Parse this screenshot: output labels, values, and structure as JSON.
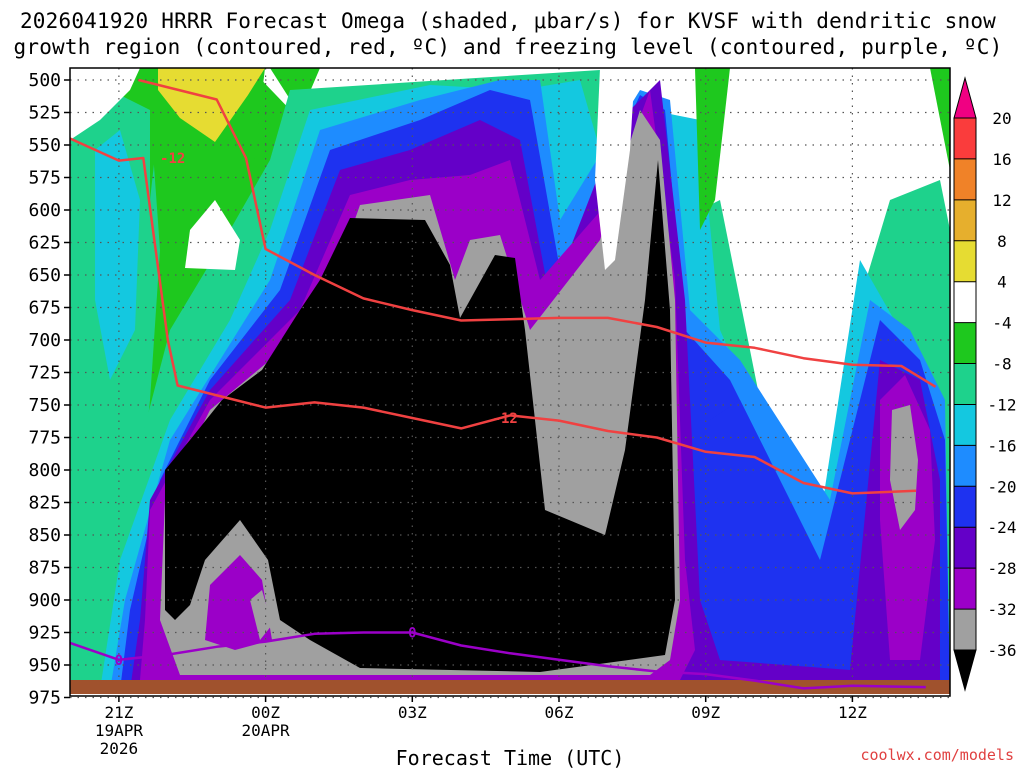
{
  "title_lines": [
    "2026041920 HRRR Forecast Omega (shaded, μbar/s) for KVSF with dendritic snow",
    "growth region (contoured, red, ºC) and freezing level (contoured, purple, ºC)"
  ],
  "credit": "coolwx.com/models",
  "chart_data": {
    "type": "heatmap",
    "title": "2026041920 HRRR Forecast Omega (shaded, μbar/s) for KVSF with dendritic snow growth region (contoured, red, ºC) and freezing level (contoured, purple, ºC)",
    "xlabel": "Forecast Time (UTC)",
    "ylabel": "",
    "x_ticks": [
      {
        "label": "21Z",
        "sub": [
          "19APR",
          "2026"
        ],
        "hours": 1
      },
      {
        "label": "00Z",
        "sub": [
          "20APR"
        ],
        "hours": 4
      },
      {
        "label": "03Z",
        "sub": [],
        "hours": 7
      },
      {
        "label": "06Z",
        "sub": [],
        "hours": 10
      },
      {
        "label": "09Z",
        "sub": [],
        "hours": 13
      },
      {
        "label": "12Z",
        "sub": [],
        "hours": 16
      }
    ],
    "y_ticks": [
      500,
      525,
      550,
      575,
      600,
      625,
      650,
      675,
      700,
      725,
      750,
      775,
      800,
      825,
      850,
      875,
      900,
      925,
      950,
      975
    ],
    "ylim": [
      500,
      975
    ],
    "y_inverted": true,
    "colorbar": {
      "labels": [
        20,
        16,
        12,
        8,
        4,
        -4,
        -8,
        -12,
        -16,
        -20,
        -24,
        -28,
        -32,
        -36
      ],
      "levels": [
        {
          "range": "<-36",
          "color": "#000000"
        },
        {
          "range": "-36 to -32",
          "color": "#a0a0a0"
        },
        {
          "range": "-32 to -28",
          "color": "#9b00c8"
        },
        {
          "range": "-28 to -24",
          "color": "#6400c8"
        },
        {
          "range": "-24 to -20",
          "color": "#1e32f0"
        },
        {
          "range": "-20 to -16",
          "color": "#1e8cff"
        },
        {
          "range": "-16 to -12",
          "color": "#14c8e0"
        },
        {
          "range": "-12 to -8",
          "color": "#1ed28c"
        },
        {
          "range": "-8 to -4",
          "color": "#1ec81e"
        },
        {
          "range": "-4 to 4",
          "color": "#ffffff"
        },
        {
          "range": "4 to 8",
          "color": "#e6dc32"
        },
        {
          "range": "8 to 12",
          "color": "#e6af2d"
        },
        {
          "range": "12 to 16",
          "color": "#f08228"
        },
        {
          "range": "16 to 20",
          "color": "#fa3c3c"
        },
        {
          "range": ">20",
          "color": "#f00082"
        }
      ]
    },
    "contours": [
      {
        "name": "-12",
        "color": "#f04141",
        "points": [
          [
            0,
            545
          ],
          [
            1,
            562
          ],
          [
            1.5,
            560
          ],
          [
            2.0,
            700
          ],
          [
            2.2,
            735
          ],
          [
            4,
            752
          ],
          [
            5,
            748
          ],
          [
            6,
            752
          ],
          [
            7,
            760
          ],
          [
            8,
            768
          ],
          [
            9,
            758
          ],
          [
            10,
            762
          ],
          [
            11,
            770
          ],
          [
            12,
            775
          ],
          [
            13,
            786
          ],
          [
            14,
            790
          ],
          [
            15,
            810
          ],
          [
            16,
            818
          ],
          [
            17.3,
            816
          ]
        ]
      },
      {
        "name": "-12",
        "color": "#f04141",
        "points": [
          [
            1.4,
            500
          ],
          [
            3,
            515
          ],
          [
            3.6,
            560
          ],
          [
            4.0,
            630
          ],
          [
            5,
            650
          ],
          [
            6,
            668
          ],
          [
            7,
            677
          ],
          [
            8,
            685
          ],
          [
            9,
            684
          ],
          [
            10,
            683
          ],
          [
            11,
            683
          ],
          [
            12,
            690
          ],
          [
            13,
            702
          ],
          [
            14,
            706
          ],
          [
            15,
            714
          ],
          [
            16,
            719
          ],
          [
            17,
            720
          ],
          [
            17.7,
            736
          ]
        ]
      },
      {
        "name": "0",
        "color": "#9b00c8",
        "points": [
          [
            0,
            933
          ],
          [
            1,
            946
          ],
          [
            2,
            942
          ],
          [
            3,
            936
          ],
          [
            4,
            932
          ],
          [
            5,
            926
          ],
          [
            6,
            925
          ],
          [
            7,
            925
          ],
          [
            8,
            935
          ],
          [
            9,
            941
          ],
          [
            10,
            946
          ],
          [
            11,
            951
          ],
          [
            12,
            955
          ],
          [
            13,
            957
          ],
          [
            14,
            962
          ],
          [
            15,
            968
          ],
          [
            16,
            966
          ],
          [
            17.5,
            967
          ]
        ]
      }
    ],
    "contour_labels": [
      {
        "text": "-12",
        "color": "#f04141",
        "x": 2.1,
        "y": 560
      },
      {
        "text": "-12",
        "color": "#f04141",
        "x": 8.9,
        "y": 760
      },
      {
        "text": "0",
        "color": "#9b00c8",
        "x": 1.0,
        "y": 946
      },
      {
        "text": "0",
        "color": "#9b00c8",
        "x": 7.0,
        "y": 925
      }
    ],
    "grid": "dotted"
  }
}
